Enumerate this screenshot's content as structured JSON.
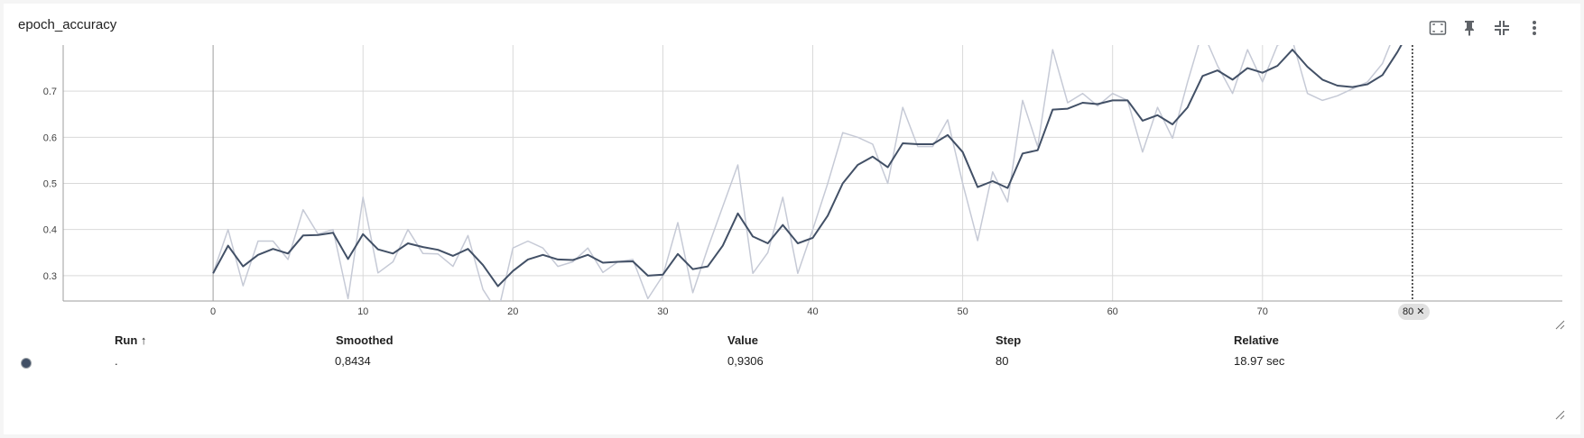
{
  "card": {
    "title": "epoch_accuracy"
  },
  "toolbar": {
    "icons": [
      "fit-domain-icon",
      "pin-icon",
      "collapse-icon",
      "more-vert-icon"
    ]
  },
  "colors": {
    "smoothed_line": "#425066",
    "raw_line": "#c6cad6",
    "grid": "#d9d9d9",
    "axis": "#9e9e9e",
    "run_color": "#425066"
  },
  "chart_data": {
    "type": "line",
    "title": "",
    "xlabel": "",
    "ylabel": "",
    "xlim": [
      -10,
      90
    ],
    "ylim": [
      0.245,
      0.8
    ],
    "x_ticks": [
      0,
      10,
      20,
      30,
      40,
      50,
      60,
      70
    ],
    "y_ticks": [
      0.3,
      0.4,
      0.5,
      0.6,
      0.7
    ],
    "grid": true,
    "hover_step": "80 ✕",
    "series": [
      {
        "role": "raw",
        "x": [
          0,
          1,
          2,
          3,
          4,
          5,
          6,
          7,
          8,
          9,
          10,
          11,
          12,
          13,
          14,
          15,
          16,
          17,
          18,
          19,
          20,
          21,
          22,
          23,
          24,
          25,
          26,
          27,
          28,
          29,
          30,
          31,
          32,
          33,
          34,
          35,
          36,
          37,
          38,
          39,
          40,
          41,
          42,
          43,
          44,
          45,
          46,
          47,
          48,
          49,
          50,
          51,
          52,
          53,
          54,
          55,
          56,
          57,
          58,
          59,
          60,
          61,
          62,
          63,
          64,
          65,
          66,
          67,
          68,
          69,
          70,
          71,
          72,
          73,
          74,
          75,
          76,
          77,
          78,
          79,
          80
        ],
        "values": [
          0.305,
          0.4,
          0.278,
          0.375,
          0.375,
          0.335,
          0.443,
          0.39,
          0.4,
          0.25,
          0.47,
          0.306,
          0.33,
          0.4,
          0.348,
          0.347,
          0.32,
          0.387,
          0.27,
          0.22,
          0.36,
          0.375,
          0.36,
          0.32,
          0.33,
          0.36,
          0.307,
          0.33,
          0.335,
          0.25,
          0.3,
          0.415,
          0.263,
          0.36,
          0.45,
          0.54,
          0.305,
          0.35,
          0.47,
          0.305,
          0.4,
          0.5,
          0.61,
          0.6,
          0.585,
          0.5,
          0.665,
          0.58,
          0.58,
          0.638,
          0.5,
          0.376,
          0.525,
          0.46,
          0.68,
          0.58,
          0.79,
          0.675,
          0.695,
          0.668,
          0.695,
          0.68,
          0.568,
          0.665,
          0.598,
          0.72,
          0.83,
          0.755,
          0.695,
          0.79,
          0.72,
          0.8,
          0.81,
          0.695,
          0.68,
          0.69,
          0.705,
          0.72,
          0.76,
          0.84,
          0.9306
        ]
      },
      {
        "role": "smoothed",
        "x": [
          0,
          1,
          2,
          3,
          4,
          5,
          6,
          7,
          8,
          9,
          10,
          11,
          12,
          13,
          14,
          15,
          16,
          17,
          18,
          19,
          20,
          21,
          22,
          23,
          24,
          25,
          26,
          27,
          28,
          29,
          30,
          31,
          32,
          33,
          34,
          35,
          36,
          37,
          38,
          39,
          40,
          41,
          42,
          43,
          44,
          45,
          46,
          47,
          48,
          49,
          50,
          51,
          52,
          53,
          54,
          55,
          56,
          57,
          58,
          59,
          60,
          61,
          62,
          63,
          64,
          65,
          66,
          67,
          68,
          69,
          70,
          71,
          72,
          73,
          74,
          75,
          76,
          77,
          78,
          79,
          80
        ],
        "values": [
          0.305,
          0.365,
          0.32,
          0.345,
          0.358,
          0.348,
          0.387,
          0.388,
          0.393,
          0.336,
          0.39,
          0.357,
          0.348,
          0.37,
          0.362,
          0.356,
          0.343,
          0.358,
          0.323,
          0.277,
          0.31,
          0.335,
          0.345,
          0.335,
          0.334,
          0.345,
          0.328,
          0.33,
          0.331,
          0.3,
          0.302,
          0.347,
          0.314,
          0.32,
          0.365,
          0.435,
          0.385,
          0.37,
          0.41,
          0.37,
          0.382,
          0.43,
          0.5,
          0.54,
          0.558,
          0.535,
          0.587,
          0.585,
          0.585,
          0.605,
          0.568,
          0.492,
          0.505,
          0.49,
          0.565,
          0.572,
          0.66,
          0.662,
          0.675,
          0.672,
          0.68,
          0.68,
          0.636,
          0.648,
          0.628,
          0.665,
          0.733,
          0.745,
          0.725,
          0.75,
          0.74,
          0.755,
          0.79,
          0.753,
          0.725,
          0.712,
          0.709,
          0.715,
          0.735,
          0.785,
          0.8434
        ]
      }
    ]
  },
  "table": {
    "headers": {
      "run": "Run ↑",
      "smoothed": "Smoothed",
      "value": "Value",
      "step": "Step",
      "relative": "Relative"
    },
    "rows": [
      {
        "run": ".",
        "smoothed": "0,8434",
        "value": "0,9306",
        "step": "80",
        "relative": "18.97 sec"
      }
    ]
  }
}
